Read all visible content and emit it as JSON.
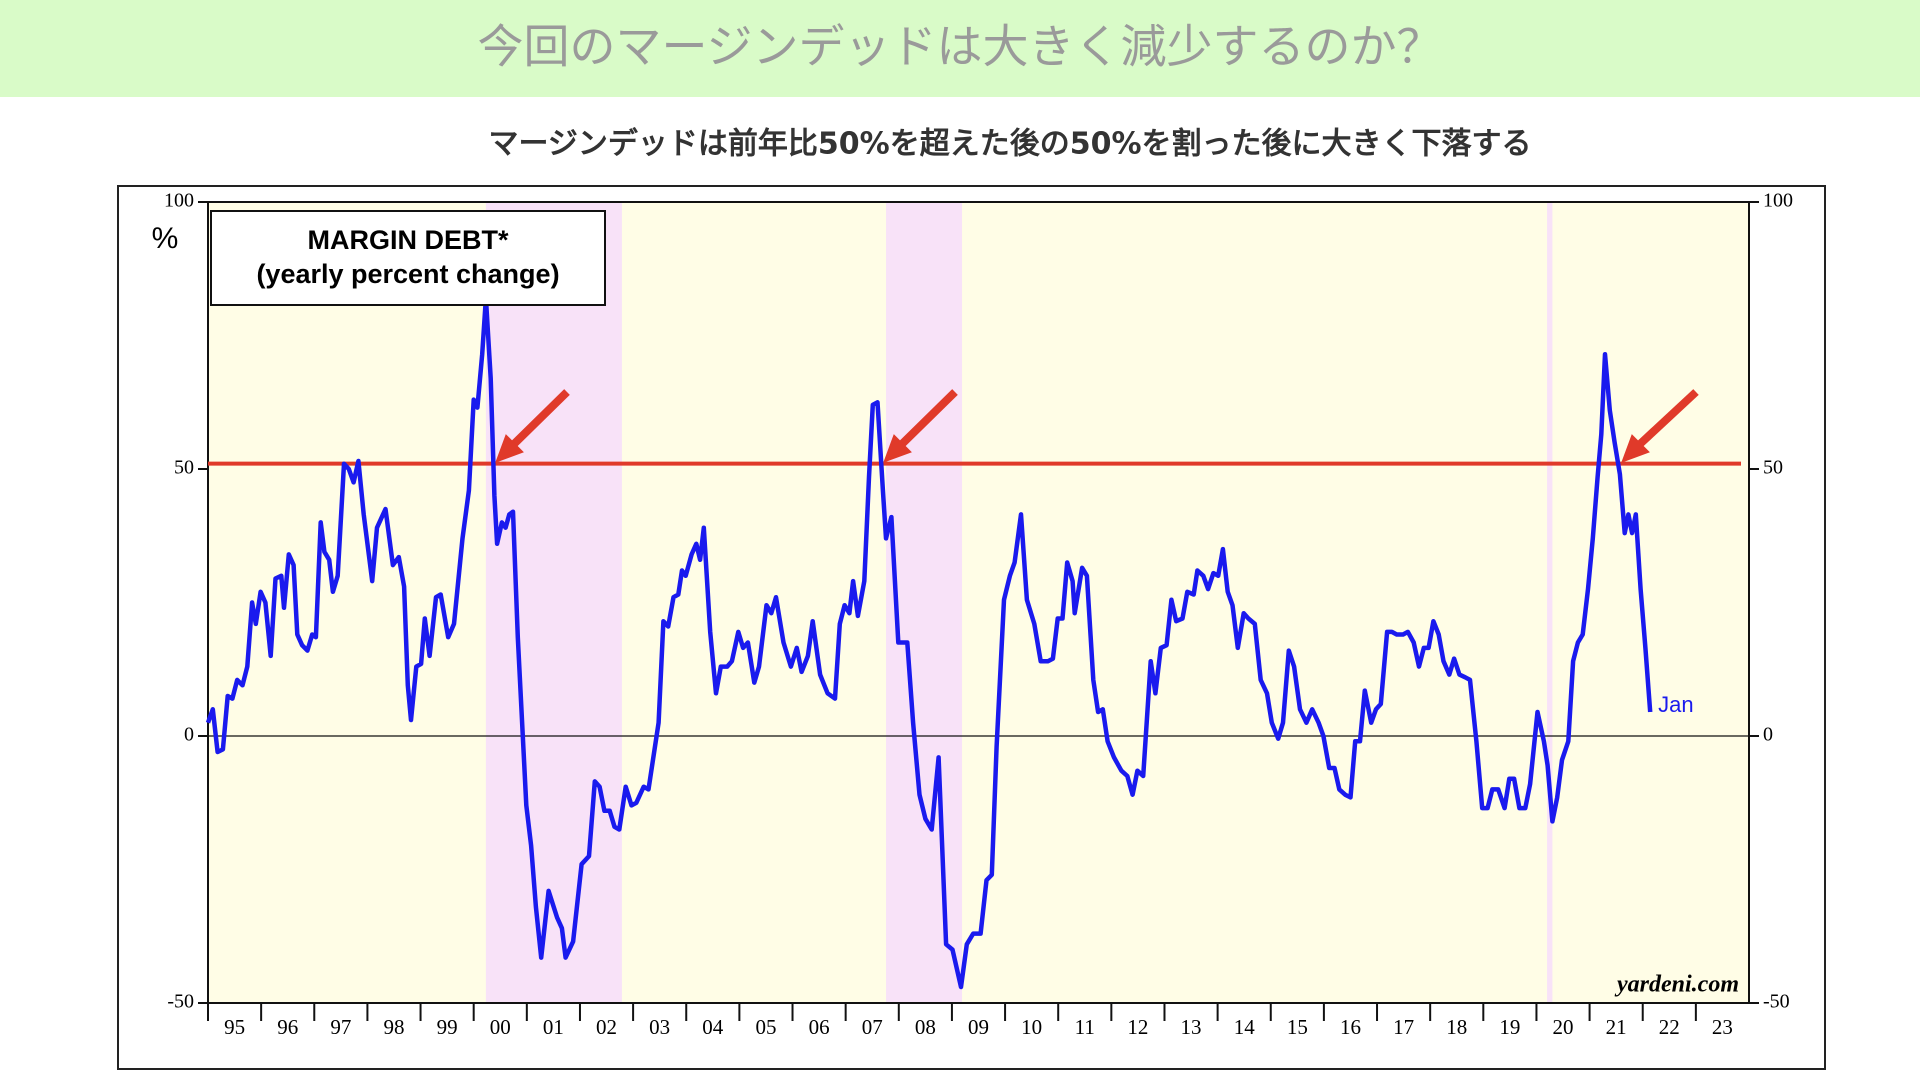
{
  "header_title": "今回のマージンデッドは大きく減少するのか？",
  "chart_data": {
    "type": "line",
    "title": "マージンデッドは前年比50%を超えた後の50%を割った後に大きく下落する",
    "legend_box": [
      "MARGIN DEBT*",
      "(yearly percent change)"
    ],
    "y_label": "%",
    "source": "yardeni.com",
    "annotations": [
      {
        "text": "Jan"
      }
    ],
    "xlim": [
      1995,
      2024
    ],
    "xticks": [
      {
        "value": 1995,
        "label": "95"
      },
      {
        "value": 1996,
        "label": "96"
      },
      {
        "value": 1997,
        "label": "97"
      },
      {
        "value": 1998,
        "label": "98"
      },
      {
        "value": 1999,
        "label": "99"
      },
      {
        "value": 2000,
        "label": "00"
      },
      {
        "value": 2001,
        "label": "01"
      },
      {
        "value": 2002,
        "label": "02"
      },
      {
        "value": 2003,
        "label": "03"
      },
      {
        "value": 2004,
        "label": "04"
      },
      {
        "value": 2005,
        "label": "05"
      },
      {
        "value": 2006,
        "label": "06"
      },
      {
        "value": 2007,
        "label": "07"
      },
      {
        "value": 2008,
        "label": "08"
      },
      {
        "value": 2009,
        "label": "09"
      },
      {
        "value": 2010,
        "label": "10"
      },
      {
        "value": 2011,
        "label": "11"
      },
      {
        "value": 2012,
        "label": "12"
      },
      {
        "value": 2013,
        "label": "13"
      },
      {
        "value": 2014,
        "label": "14"
      },
      {
        "value": 2015,
        "label": "15"
      },
      {
        "value": 2016,
        "label": "16"
      },
      {
        "value": 2017,
        "label": "17"
      },
      {
        "value": 2018,
        "label": "18"
      },
      {
        "value": 2019,
        "label": "19"
      },
      {
        "value": 2020,
        "label": "20"
      },
      {
        "value": 2021,
        "label": "21"
      },
      {
        "value": 2022,
        "label": "22"
      },
      {
        "value": 2023,
        "label": "23"
      }
    ],
    "ylim": [
      -50,
      100
    ],
    "yticks": [
      -50,
      0,
      50,
      100
    ],
    "reference_line": {
      "value": 51,
      "color": "#e03a2a"
    },
    "recession_bands": [
      [
        2000.23,
        2002.79
      ],
      [
        2007.76,
        2009.19
      ],
      [
        2020.2,
        2020.3
      ]
    ],
    "band_color": "#f8e2f8",
    "plot_background": "#fffde6",
    "series": [
      {
        "name": "MARGIN DEBT*",
        "color": "#1a1aee",
        "x": [
          1995.0,
          1995.09,
          1995.18,
          1995.28,
          1995.37,
          1995.46,
          1995.55,
          1995.65,
          1995.74,
          1995.83,
          1995.9,
          1995.99,
          1996.08,
          1996.18,
          1996.27,
          1996.38,
          1996.43,
          1996.52,
          1996.61,
          1996.68,
          1996.77,
          1996.87,
          1996.96,
          1997.03,
          1997.12,
          1997.19,
          1997.28,
          1997.35,
          1997.44,
          1997.56,
          1997.65,
          1997.74,
          1997.83,
          1997.93,
          1998.09,
          1998.18,
          1998.34,
          1998.48,
          1998.59,
          1998.69,
          1998.76,
          1998.82,
          1998.92,
          1999.01,
          1999.08,
          1999.17,
          1999.29,
          1999.38,
          1999.52,
          1999.63,
          1999.79,
          1999.91,
          2000.0,
          2000.07,
          2000.16,
          2000.23,
          2000.32,
          2000.39,
          2000.44,
          2000.53,
          2000.6,
          2000.67,
          2000.74,
          2000.83,
          2000.99,
          2001.08,
          2001.17,
          2001.27,
          2001.41,
          2001.57,
          2001.66,
          2001.73,
          2001.87,
          2002.03,
          2002.17,
          2002.28,
          2002.37,
          2002.46,
          2002.56,
          2002.65,
          2002.74,
          2002.86,
          2002.97,
          2003.06,
          2003.2,
          2003.29,
          2003.48,
          2003.57,
          2003.66,
          2003.76,
          2003.85,
          2003.92,
          2003.99,
          2004.1,
          2004.19,
          2004.26,
          2004.33,
          2004.45,
          2004.56,
          2004.65,
          2004.77,
          2004.86,
          2004.98,
          2005.07,
          2005.16,
          2005.28,
          2005.37,
          2005.51,
          2005.6,
          2005.69,
          2005.83,
          2005.97,
          2006.08,
          2006.17,
          2006.29,
          2006.38,
          2006.52,
          2006.66,
          2006.8,
          2006.89,
          2006.98,
          2007.07,
          2007.14,
          2007.23,
          2007.35,
          2007.44,
          2007.51,
          2007.6,
          2007.7,
          2007.76,
          2007.86,
          2007.99,
          2008.16,
          2008.27,
          2008.39,
          2008.5,
          2008.62,
          2008.75,
          2008.89,
          2009.01,
          2009.17,
          2009.28,
          2009.4,
          2009.54,
          2009.65,
          2009.75,
          2009.84,
          2009.98,
          2010.09,
          2010.18,
          2010.3,
          2010.41,
          2010.55,
          2010.67,
          2010.81,
          2010.9,
          2010.99,
          2011.08,
          2011.17,
          2011.27,
          2011.31,
          2011.45,
          2011.54,
          2011.66,
          2011.75,
          2011.84,
          2011.93,
          2012.05,
          2012.19,
          2012.3,
          2012.4,
          2012.49,
          2012.6,
          2012.74,
          2012.83,
          2012.93,
          2013.04,
          2013.13,
          2013.22,
          2013.34,
          2013.43,
          2013.55,
          2013.62,
          2013.73,
          2013.82,
          2013.92,
          2014.01,
          2014.1,
          2014.19,
          2014.28,
          2014.38,
          2014.49,
          2014.58,
          2014.7,
          2014.81,
          2014.93,
          2015.02,
          2015.14,
          2015.23,
          2015.34,
          2015.44,
          2015.55,
          2015.67,
          2015.78,
          2015.9,
          2015.99,
          2016.1,
          2016.2,
          2016.29,
          2016.4,
          2016.5,
          2016.59,
          2016.68,
          2016.77,
          2016.89,
          2016.98,
          2017.07,
          2017.19,
          2017.28,
          2017.37,
          2017.49,
          2017.58,
          2017.69,
          2017.79,
          2017.88,
          2017.97,
          2018.06,
          2018.16,
          2018.25,
          2018.36,
          2018.45,
          2018.55,
          2018.66,
          2018.75,
          2018.87,
          2018.98,
          2019.08,
          2019.17,
          2019.28,
          2019.4,
          2019.49,
          2019.58,
          2019.68,
          2019.79,
          2019.88,
          2020.02,
          2020.14,
          2020.21,
          2020.3,
          2020.39,
          2020.48,
          2020.6,
          2020.69,
          2020.78,
          2020.87,
          2020.97,
          2021.06,
          2021.15,
          2021.22,
          2021.29,
          2021.38,
          2021.47,
          2021.57,
          2021.66,
          2021.73,
          2021.8,
          2021.87,
          2021.96,
          2022.05,
          2022.14
        ],
        "values": [
          2.5,
          5,
          -3,
          -2.5,
          7.5,
          7,
          10.5,
          9.5,
          13,
          25,
          21,
          27,
          25,
          15,
          29.5,
          30,
          24,
          34,
          32,
          19,
          17,
          16,
          19,
          18.5,
          40,
          34.5,
          33,
          27,
          30,
          51,
          50,
          47.5,
          51.5,
          41.5,
          29,
          39,
          42.5,
          32,
          33.5,
          28,
          9.5,
          3,
          13,
          13.5,
          22,
          15,
          26,
          26.5,
          18.5,
          21,
          37,
          46,
          63,
          61.5,
          71.5,
          82,
          67,
          45,
          36,
          40,
          39,
          41.5,
          42,
          18.5,
          -13,
          -20.5,
          -32,
          -41.5,
          -29,
          -34,
          -36,
          -41.5,
          -38.5,
          -24,
          -22.5,
          -8.5,
          -9.5,
          -14,
          -14,
          -17,
          -17.5,
          -9.5,
          -13,
          -12.5,
          -9.5,
          -10,
          2.5,
          21.5,
          20.5,
          26,
          26.5,
          31,
          30,
          34,
          36,
          33,
          39,
          19.5,
          8,
          13,
          13,
          14,
          19.5,
          16.5,
          17.5,
          10,
          13,
          24.5,
          23,
          26,
          17.5,
          13,
          16.5,
          12,
          15,
          21.5,
          11.5,
          8,
          7,
          21,
          24.5,
          23,
          29,
          22.5,
          29,
          48.5,
          62,
          62.5,
          46,
          37,
          41,
          17.5,
          17.5,
          2.5,
          -11,
          -15.5,
          -17.5,
          -4,
          -39,
          -40,
          -47,
          -39,
          -37,
          -37,
          -27,
          -26,
          -2,
          25.5,
          30,
          32.5,
          41.5,
          25.5,
          21,
          14,
          14,
          14.5,
          22,
          22,
          32.5,
          29,
          23,
          31.5,
          30,
          10.5,
          4.5,
          5,
          -1,
          -4,
          -6.5,
          -7.5,
          -11,
          -6.5,
          -7.5,
          14,
          8,
          16.5,
          17,
          25.5,
          21.5,
          22,
          27,
          26.5,
          31,
          30,
          27.5,
          30.5,
          30,
          35,
          27,
          24.5,
          16.5,
          23,
          22,
          21,
          10.5,
          8,
          2.5,
          -0.5,
          2.5,
          16,
          13,
          5,
          2.5,
          5,
          2.5,
          0,
          -6,
          -6,
          -10,
          -11,
          -11.5,
          -1,
          -1,
          8.5,
          2.5,
          5,
          6,
          19.5,
          19.5,
          19,
          19,
          19.5,
          17.5,
          13,
          16.5,
          16.5,
          21.5,
          19,
          14,
          11.5,
          14.5,
          11.5,
          11,
          10.5,
          -1,
          -13.5,
          -13.5,
          -10,
          -10,
          -13.5,
          -8,
          -8,
          -13.5,
          -13.5,
          -9,
          4.5,
          -1,
          -5.5,
          -16,
          -11.5,
          -4.5,
          -1,
          14,
          17.5,
          19,
          27.5,
          37,
          48.5,
          56.5,
          71.5,
          61,
          55,
          49,
          38,
          41.5,
          38,
          41.5,
          27.5,
          16.5,
          4.5
        ]
      }
    ]
  }
}
